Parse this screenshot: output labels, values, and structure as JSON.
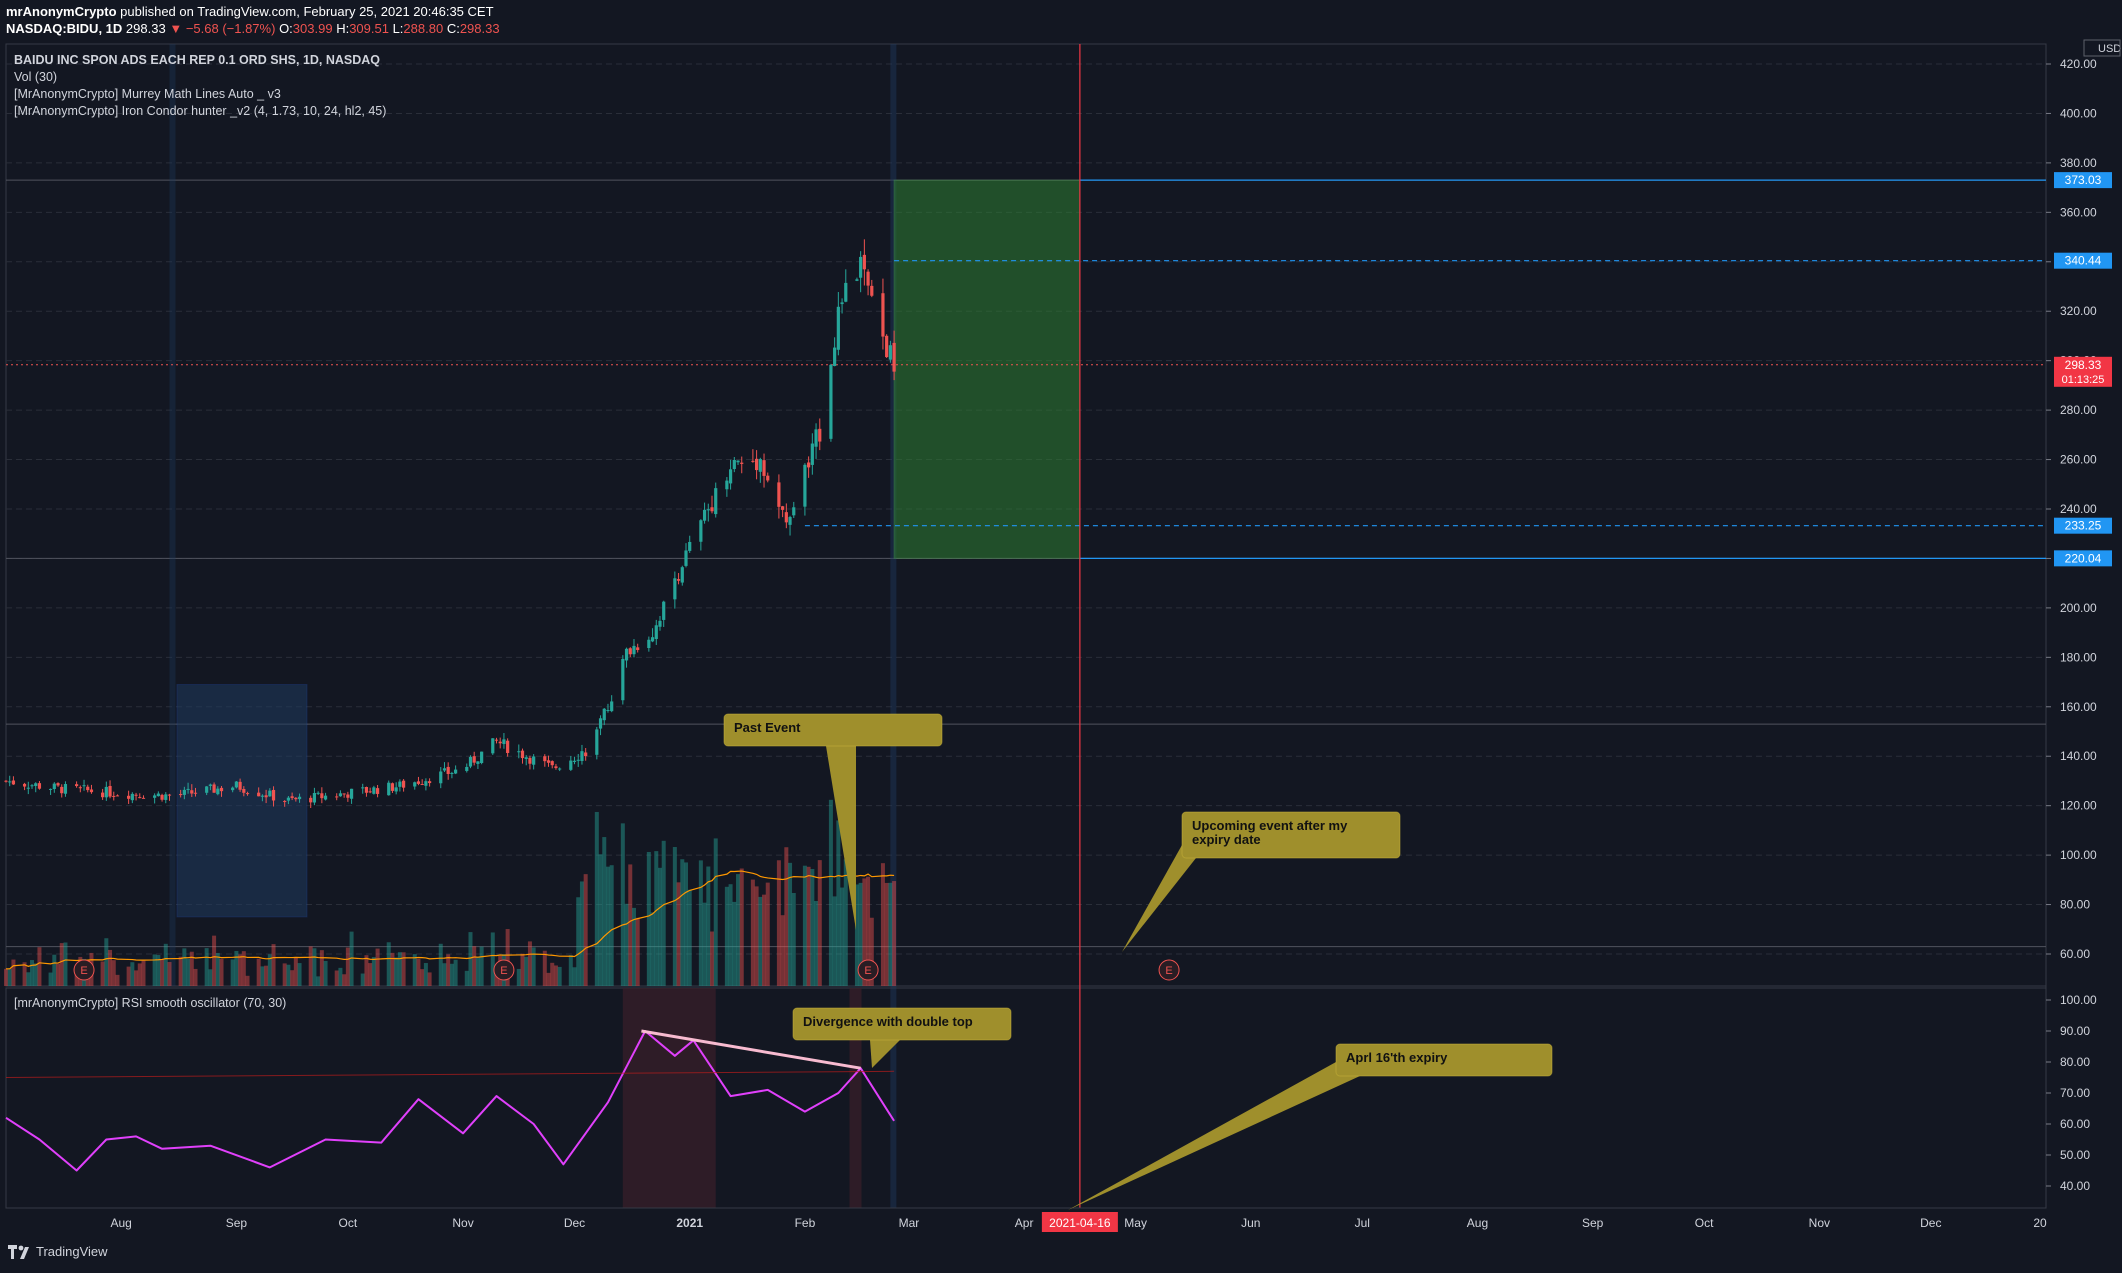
{
  "header": {
    "user": "mrAnonymCrypto",
    "published": " published on TradingView.com, February 25, 2021 20:46:35 CET",
    "symbol": "NASDAQ:BIDU, 1D",
    "last": "298.33",
    "change": "−5.68 (−1.87%)",
    "o_label": "O:",
    "o": "303.99",
    "h_label": "H:",
    "h": "309.51",
    "l_label": "L:",
    "l": "288.80",
    "c_label": "C:",
    "c": "298.33"
  },
  "legend": {
    "title": "BAIDU INC SPON ADS EACH REP 0.1 ORD SHS, 1D, NASDAQ",
    "vol": "Vol (30)",
    "murrey": "[MrAnonymCrypto] Murrey Math Lines Auto _ v3",
    "condor": "[MrAnonymCrypto] Iron Condor hunter _v2 (4, 1.73, 10, 24, hl2, 45)",
    "rsi": "[mrAnonymCrypto] RSI smooth oscillator (70, 30)"
  },
  "footer": {
    "brand": "TradingView"
  },
  "colors": {
    "bg": "#131722",
    "up": "#26a69a",
    "down": "#ef5350",
    "grid": "#2a2e39",
    "accent_blue": "#2196f3",
    "rsi": "#e040fb",
    "callout": "#9f8f2c",
    "vline": "#f23645"
  },
  "chart_data": [
    {
      "type": "candlestick",
      "title": "BAIDU INC SPON ADS EACH REP 0.1 ORD SHS, 1D, NASDAQ",
      "currency": "USD",
      "ylim": [
        50,
        470
      ],
      "y_ticks": [
        "60.00",
        "80.00",
        "100.00",
        "120.00",
        "140.00",
        "160.00",
        "180.00",
        "200.00",
        "220.00",
        "240.00",
        "260.00",
        "280.00",
        "300.00",
        "320.00",
        "340.00",
        "360.00",
        "380.00",
        "400.00",
        "420.00"
      ],
      "x_ticks": [
        "Aug",
        "Sep",
        "Oct",
        "Nov",
        "Dec",
        "2021",
        "Feb",
        "Mar",
        "Apr",
        "May",
        "Jun",
        "Jul",
        "Aug",
        "Sep",
        "Oct",
        "Nov",
        "Dec",
        "20"
      ],
      "x_range": [
        "2020-07-01",
        "2022-01-01"
      ],
      "close_series": [
        [
          "2020-07-01",
          130
        ],
        [
          "2020-07-15",
          127
        ],
        [
          "2020-08-01",
          125
        ],
        [
          "2020-08-15",
          124
        ],
        [
          "2020-09-01",
          128
        ],
        [
          "2020-09-15",
          122
        ],
        [
          "2020-10-01",
          125
        ],
        [
          "2020-10-15",
          128
        ],
        [
          "2020-11-01",
          135
        ],
        [
          "2020-11-10",
          146
        ],
        [
          "2020-11-25",
          135
        ],
        [
          "2020-12-05",
          143
        ],
        [
          "2020-12-10",
          160
        ],
        [
          "2020-12-15",
          182
        ],
        [
          "2020-12-22",
          190
        ],
        [
          "2020-12-30",
          218
        ],
        [
          "2021-01-05",
          237
        ],
        [
          "2021-01-12",
          258
        ],
        [
          "2021-01-20",
          260
        ],
        [
          "2021-01-27",
          233
        ],
        [
          "2021-02-05",
          272
        ],
        [
          "2021-02-10",
          320
        ],
        [
          "2021-02-16",
          339
        ],
        [
          "2021-02-20",
          316
        ],
        [
          "2021-02-25",
          298
        ]
      ],
      "annotations": {
        "price_labels": [
          {
            "value": "373.03",
            "color": "#2196f3"
          },
          {
            "value": "340.44",
            "color": "#2196f3"
          },
          {
            "value": "298.33",
            "color": "#f23645",
            "timer": "01:13:25"
          },
          {
            "value": "233.25",
            "color": "#2196f3"
          },
          {
            "value": "220.04",
            "color": "#2196f3"
          }
        ],
        "expiry_date": "2021-04-16",
        "iron_condor_zone": {
          "from": "2021-02-25",
          "to": "2021-04-16",
          "low": 220.04,
          "high": 373.03
        },
        "callouts": [
          {
            "text": "Past Event"
          },
          {
            "text": "Upcoming event after my expiry date"
          },
          {
            "text": "Divergence with double top"
          },
          {
            "text": "Aprl 16'th expiry"
          }
        ],
        "event_marker": "E"
      }
    },
    {
      "type": "line",
      "title": "[mrAnonymCrypto] RSI smooth oscillator (70, 30)",
      "ylim": [
        35,
        100
      ],
      "y_ticks": [
        "40.00",
        "50.00",
        "60.00",
        "70.00",
        "80.00",
        "90.00",
        "100.00"
      ],
      "series": [
        {
          "values": [
            [
              "2020-07-01",
              62
            ],
            [
              "2020-07-10",
              55
            ],
            [
              "2020-07-20",
              45
            ],
            [
              "2020-07-28",
              55
            ],
            [
              "2020-08-05",
              56
            ],
            [
              "2020-08-12",
              52
            ],
            [
              "2020-08-25",
              53
            ],
            [
              "2020-09-10",
              46
            ],
            [
              "2020-09-25",
              55
            ],
            [
              "2020-10-10",
              54
            ],
            [
              "2020-10-20",
              68
            ],
            [
              "2020-11-01",
              57
            ],
            [
              "2020-11-10",
              69
            ],
            [
              "2020-11-20",
              60
            ],
            [
              "2020-11-28",
              47
            ],
            [
              "2020-12-10",
              67
            ],
            [
              "2020-12-20",
              90
            ],
            [
              "2020-12-28",
              82
            ],
            [
              "2021-01-02",
              87
            ],
            [
              "2021-01-12",
              69
            ],
            [
              "2021-01-22",
              71
            ],
            [
              "2021-02-01",
              64
            ],
            [
              "2021-02-10",
              70
            ],
            [
              "2021-02-16",
              78
            ],
            [
              "2021-02-25",
              61
            ]
          ]
        }
      ],
      "divergence": [
        [
          "2020-12-19",
          90
        ],
        [
          "2021-02-16",
          78
        ]
      ]
    }
  ]
}
